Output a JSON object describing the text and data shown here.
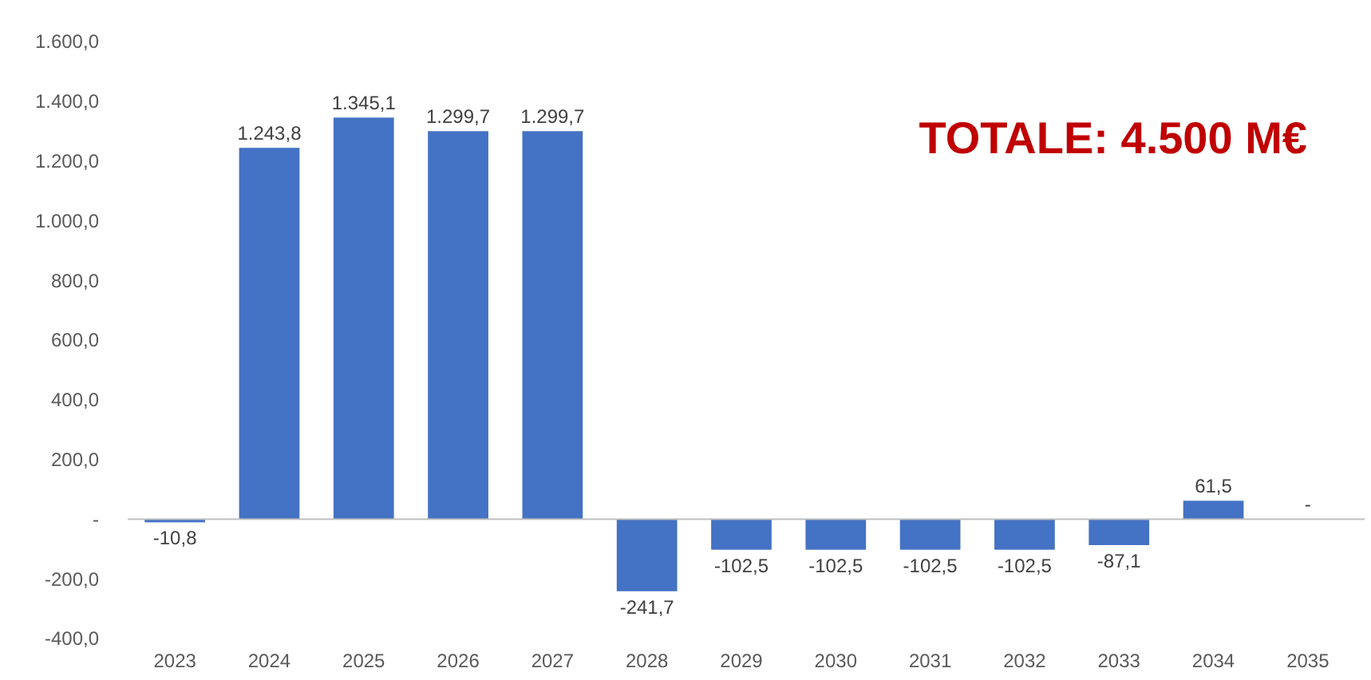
{
  "chart_data": {
    "type": "bar",
    "categories": [
      "2023",
      "2024",
      "2025",
      "2026",
      "2027",
      "2028",
      "2029",
      "2030",
      "2031",
      "2032",
      "2033",
      "2034",
      "2035"
    ],
    "values": [
      -10.8,
      1243.8,
      1345.1,
      1299.7,
      1299.7,
      -241.7,
      -102.5,
      -102.5,
      -102.5,
      -102.5,
      -87.1,
      61.5,
      0
    ],
    "value_labels": [
      "-10,8",
      "1.243,8",
      "1.345,1",
      "1.299,7",
      "1.299,7",
      "-241,7",
      "-102,5",
      "-102,5",
      "-102,5",
      "-102,5",
      "-87,1",
      "61,5",
      "-"
    ],
    "color": "#4472c4",
    "ylim": [
      -400,
      1600
    ],
    "yticks": [
      {
        "value": -400,
        "label": "-400,0"
      },
      {
        "value": -200,
        "label": "-200,0"
      },
      {
        "value": 0,
        "label": "-"
      },
      {
        "value": 200,
        "label": "200,0"
      },
      {
        "value": 400,
        "label": "400,0"
      },
      {
        "value": 600,
        "label": "600,0"
      },
      {
        "value": 800,
        "label": "800,0"
      },
      {
        "value": 1000,
        "label": "1.000,0"
      },
      {
        "value": 1200,
        "label": "1.200,0"
      },
      {
        "value": 1400,
        "label": "1.400,0"
      },
      {
        "value": 1600,
        "label": "1.600,0"
      }
    ],
    "annotations": [
      "TOTALE: 4.500 M€"
    ]
  }
}
